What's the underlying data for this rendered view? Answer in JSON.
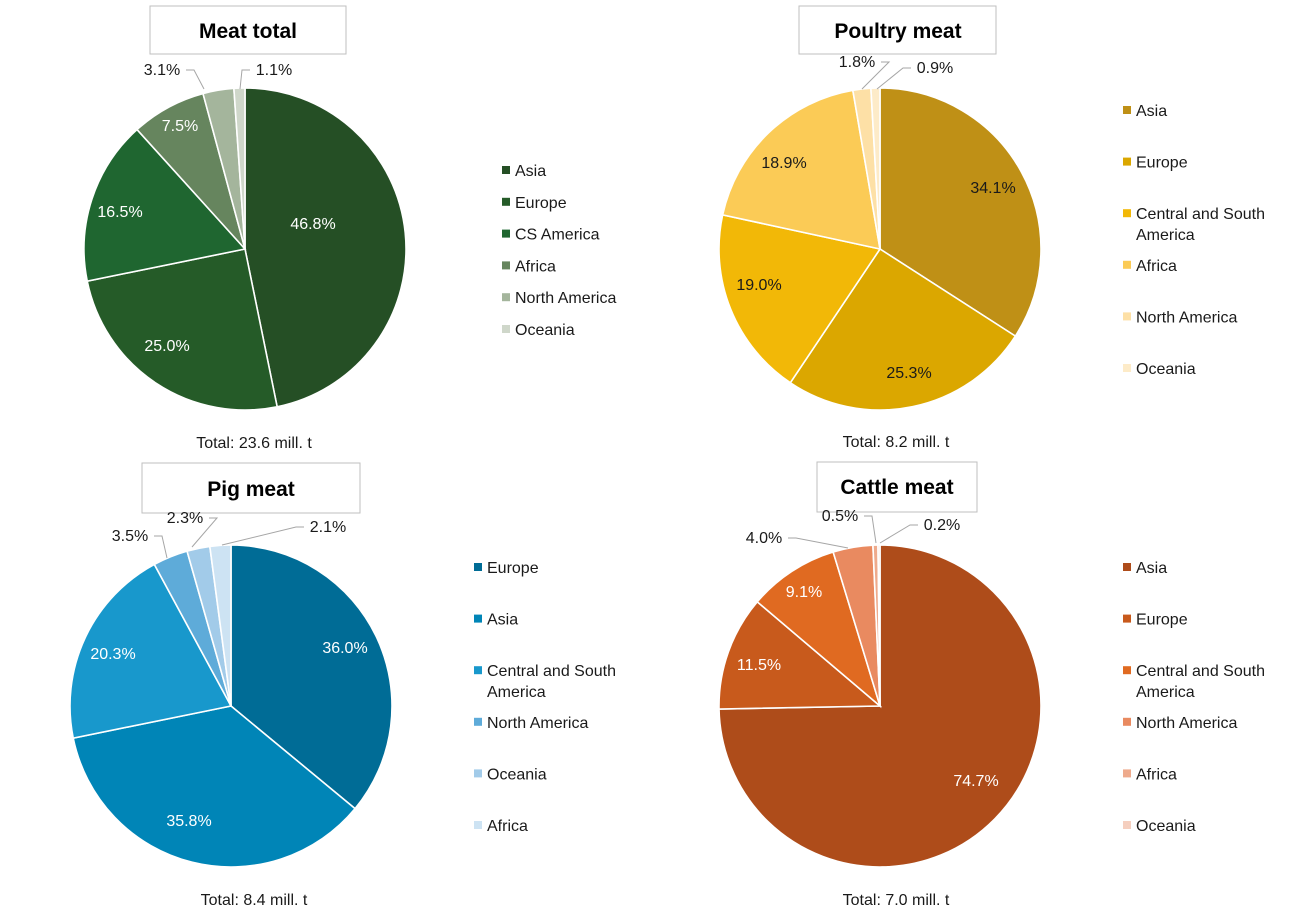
{
  "chart_data": [
    {
      "type": "pie",
      "title": "Meat total",
      "total_label": "Total: 23.6 mill. t",
      "slices": [
        {
          "name": "Asia",
          "value": 46.8,
          "label": "46.8%",
          "color": "#254f25"
        },
        {
          "name": "Europe",
          "value": 25.0,
          "label": "25.0%",
          "color": "#255b28"
        },
        {
          "name": "CS America",
          "value": 16.5,
          "label": "16.5%",
          "color": "#1f6630"
        },
        {
          "name": "Africa",
          "value": 7.5,
          "label": "7.5%",
          "color": "#66855e"
        },
        {
          "name": "North America",
          "value": 3.1,
          "label": "3.1%",
          "color": "#a4b59c"
        },
        {
          "name": "Oceania",
          "value": 1.1,
          "label": "1.1%",
          "color": "#cfd7ca"
        }
      ],
      "legend": [
        {
          "name": "Asia",
          "color": "#254f25"
        },
        {
          "name": "Europe",
          "color": "#255b28"
        },
        {
          "name": "CS America",
          "color": "#1f6630"
        },
        {
          "name": "Africa",
          "color": "#66855e"
        },
        {
          "name": "North America",
          "color": "#a4b59c"
        },
        {
          "name": "Oceania",
          "color": "#cfd7ca"
        }
      ]
    },
    {
      "type": "pie",
      "title": "Poultry meat",
      "total_label": "Total: 8.2 mill. t",
      "slices": [
        {
          "name": "Asia",
          "value": 34.1,
          "label": "34.1%",
          "color": "#bf9016"
        },
        {
          "name": "Europe",
          "value": 25.3,
          "label": "25.3%",
          "color": "#dba700"
        },
        {
          "name": "Central and South America",
          "value": 19.0,
          "label": "19.0%",
          "color": "#f2b807"
        },
        {
          "name": "Africa",
          "value": 18.9,
          "label": "18.9%",
          "color": "#fbcb56"
        },
        {
          "name": "North America",
          "value": 1.8,
          "label": "1.8%",
          "color": "#fde0a6"
        },
        {
          "name": "Oceania",
          "value": 0.9,
          "label": "0.9%",
          "color": "#fdebc8"
        }
      ],
      "legend": [
        {
          "name": "Asia",
          "color": "#bf9016"
        },
        {
          "name": "Europe",
          "color": "#dba700"
        },
        {
          "name": "Central and South America",
          "color": "#f2b807"
        },
        {
          "name": "Africa",
          "color": "#fbcb56"
        },
        {
          "name": "North America",
          "color": "#fde0a6"
        },
        {
          "name": "Oceania",
          "color": "#fdebc8"
        }
      ]
    },
    {
      "type": "pie",
      "title": "Pig meat",
      "total_label": "Total: 8.4 mill. t",
      "slices": [
        {
          "name": "Europe",
          "value": 36.0,
          "label": "36.0%",
          "color": "#006c96"
        },
        {
          "name": "Asia",
          "value": 35.8,
          "label": "35.8%",
          "color": "#0085b7"
        },
        {
          "name": "Central and South America",
          "value": 20.3,
          "label": "20.3%",
          "color": "#1898cc"
        },
        {
          "name": "North America",
          "value": 3.5,
          "label": "3.5%",
          "color": "#5eabd9"
        },
        {
          "name": "Oceania",
          "value": 2.3,
          "label": "2.3%",
          "color": "#a2cbe9"
        },
        {
          "name": "Africa",
          "value": 2.1,
          "label": "2.1%",
          "color": "#cde3f3"
        }
      ],
      "legend": [
        {
          "name": "Europe",
          "color": "#006c96"
        },
        {
          "name": "Asia",
          "color": "#0085b7"
        },
        {
          "name": "Central and South America",
          "color": "#1898cc"
        },
        {
          "name": "North America",
          "color": "#5eabd9"
        },
        {
          "name": "Oceania",
          "color": "#a2cbe9"
        },
        {
          "name": "Africa",
          "color": "#cde3f3"
        }
      ]
    },
    {
      "type": "pie",
      "title": "Cattle meat",
      "total_label": "Total: 7.0 mill. t",
      "slices": [
        {
          "name": "Asia",
          "value": 74.7,
          "label": "74.7%",
          "color": "#ae4c1a"
        },
        {
          "name": "Europe",
          "value": 11.5,
          "label": "11.5%",
          "color": "#c85a1c"
        },
        {
          "name": "Central and South America",
          "value": 9.1,
          "label": "9.1%",
          "color": "#e06a21"
        },
        {
          "name": "North America",
          "value": 4.0,
          "label": "4.0%",
          "color": "#e98a60"
        },
        {
          "name": "Africa",
          "value": 0.5,
          "label": "0.5%",
          "color": "#eeaa8c"
        },
        {
          "name": "Oceania",
          "value": 0.2,
          "label": "0.2%",
          "color": "#f5cfbf"
        }
      ],
      "legend": [
        {
          "name": "Asia",
          "color": "#ae4c1a"
        },
        {
          "name": "Europe",
          "color": "#c85a1c"
        },
        {
          "name": "Central and South America",
          "color": "#e06a21"
        },
        {
          "name": "North America",
          "color": "#e98a60"
        },
        {
          "name": "Africa",
          "color": "#eeaa8c"
        },
        {
          "name": "Oceania",
          "color": "#f5cfbf"
        }
      ]
    }
  ]
}
